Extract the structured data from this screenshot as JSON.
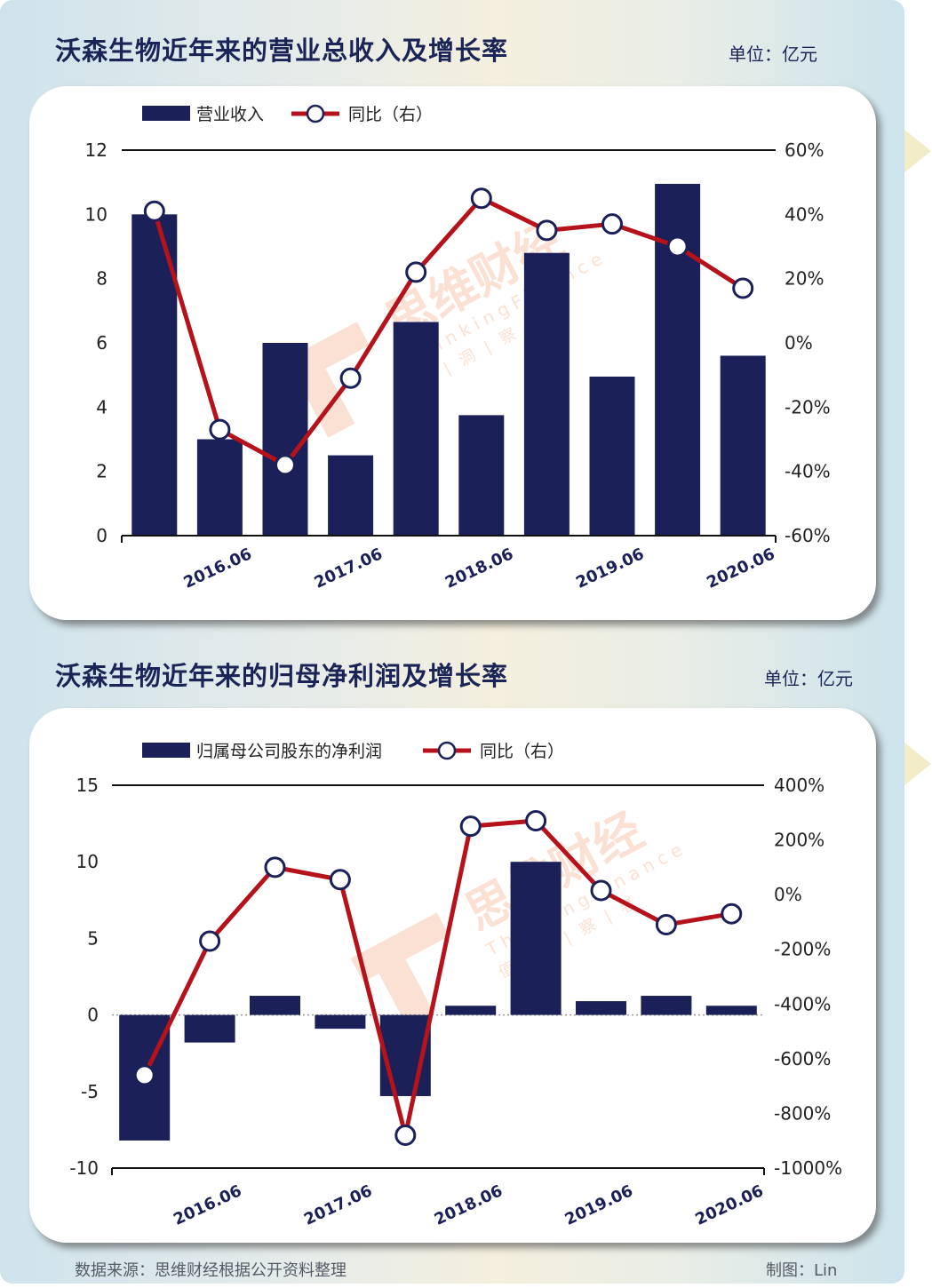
{
  "footer": {
    "source": "数据来源：思维财经根据公开资料整理",
    "credit": "制图：Lin"
  },
  "watermark": {
    "brand": "思维财经",
    "brand_en": "ThinkingFinance",
    "slogan": "值 | 洞 | 察 | 者"
  },
  "colors": {
    "bar": "#1b2058",
    "line": "#b5121b",
    "title": "#1b2456",
    "watermark": "#f4a57c"
  },
  "chart_data": [
    {
      "type": "bar",
      "title": "沃森生物近年来的营业总收入及增长率",
      "unit_label": "单位：亿元",
      "legend": {
        "bar": "营业收入",
        "line": "同比（右）",
        "placement": "top-left"
      },
      "x_tick_labels": [
        "2016.06",
        "2017.06",
        "2018.06",
        "2019.06",
        "2020.06"
      ],
      "x_ticks_at_period": [
        1,
        3,
        5,
        7,
        9
      ],
      "y_left": {
        "min": 0,
        "max": 12,
        "step": 2,
        "ticks": [
          "0",
          "2",
          "4",
          "6",
          "8",
          "10",
          "12"
        ]
      },
      "y_right": {
        "min": -60,
        "max": 60,
        "step": 20,
        "ticks": [
          "-60%",
          "-40%",
          "-20%",
          "0%",
          "20%",
          "40%",
          "60%"
        ]
      },
      "series": [
        {
          "name": "营业收入",
          "kind": "bar",
          "axis": "left",
          "values": [
            10.0,
            3.0,
            6.0,
            2.5,
            6.65,
            3.75,
            8.8,
            4.95,
            10.95,
            5.6
          ]
        },
        {
          "name": "同比（右）",
          "kind": "line",
          "axis": "right",
          "values": [
            41,
            -27,
            -38,
            -11,
            22,
            45,
            35,
            37,
            30,
            17
          ]
        }
      ]
    },
    {
      "type": "bar",
      "title": "沃森生物近年来的归母净利润及增长率",
      "unit_label": "单位：亿元",
      "legend": {
        "bar": "归属母公司股东的净利润",
        "line": "同比（右）",
        "placement": "top-left"
      },
      "x_tick_labels": [
        "2016.06",
        "2017.06",
        "2018.06",
        "2019.06",
        "2020.06"
      ],
      "x_ticks_at_period": [
        1,
        3,
        5,
        7,
        9
      ],
      "y_left": {
        "min": -10,
        "max": 15,
        "step": 5,
        "ticks": [
          "-10",
          "-5",
          "0",
          "5",
          "10",
          "15"
        ]
      },
      "y_right": {
        "min": -1000,
        "max": 400,
        "step": 200,
        "ticks": [
          "-1000%",
          "-800%",
          "-600%",
          "-400%",
          "-200%",
          "0%",
          "200%",
          "400%"
        ]
      },
      "series": [
        {
          "name": "归属母公司股东的净利润",
          "kind": "bar",
          "axis": "left",
          "values": [
            -8.2,
            -1.8,
            1.25,
            -0.9,
            -5.3,
            0.6,
            10.0,
            0.9,
            1.25,
            0.6
          ]
        },
        {
          "name": "同比（右）",
          "kind": "line",
          "axis": "right",
          "values": [
            -660,
            -170,
            100,
            55,
            -880,
            250,
            270,
            15,
            -110,
            -70
          ]
        }
      ]
    }
  ]
}
